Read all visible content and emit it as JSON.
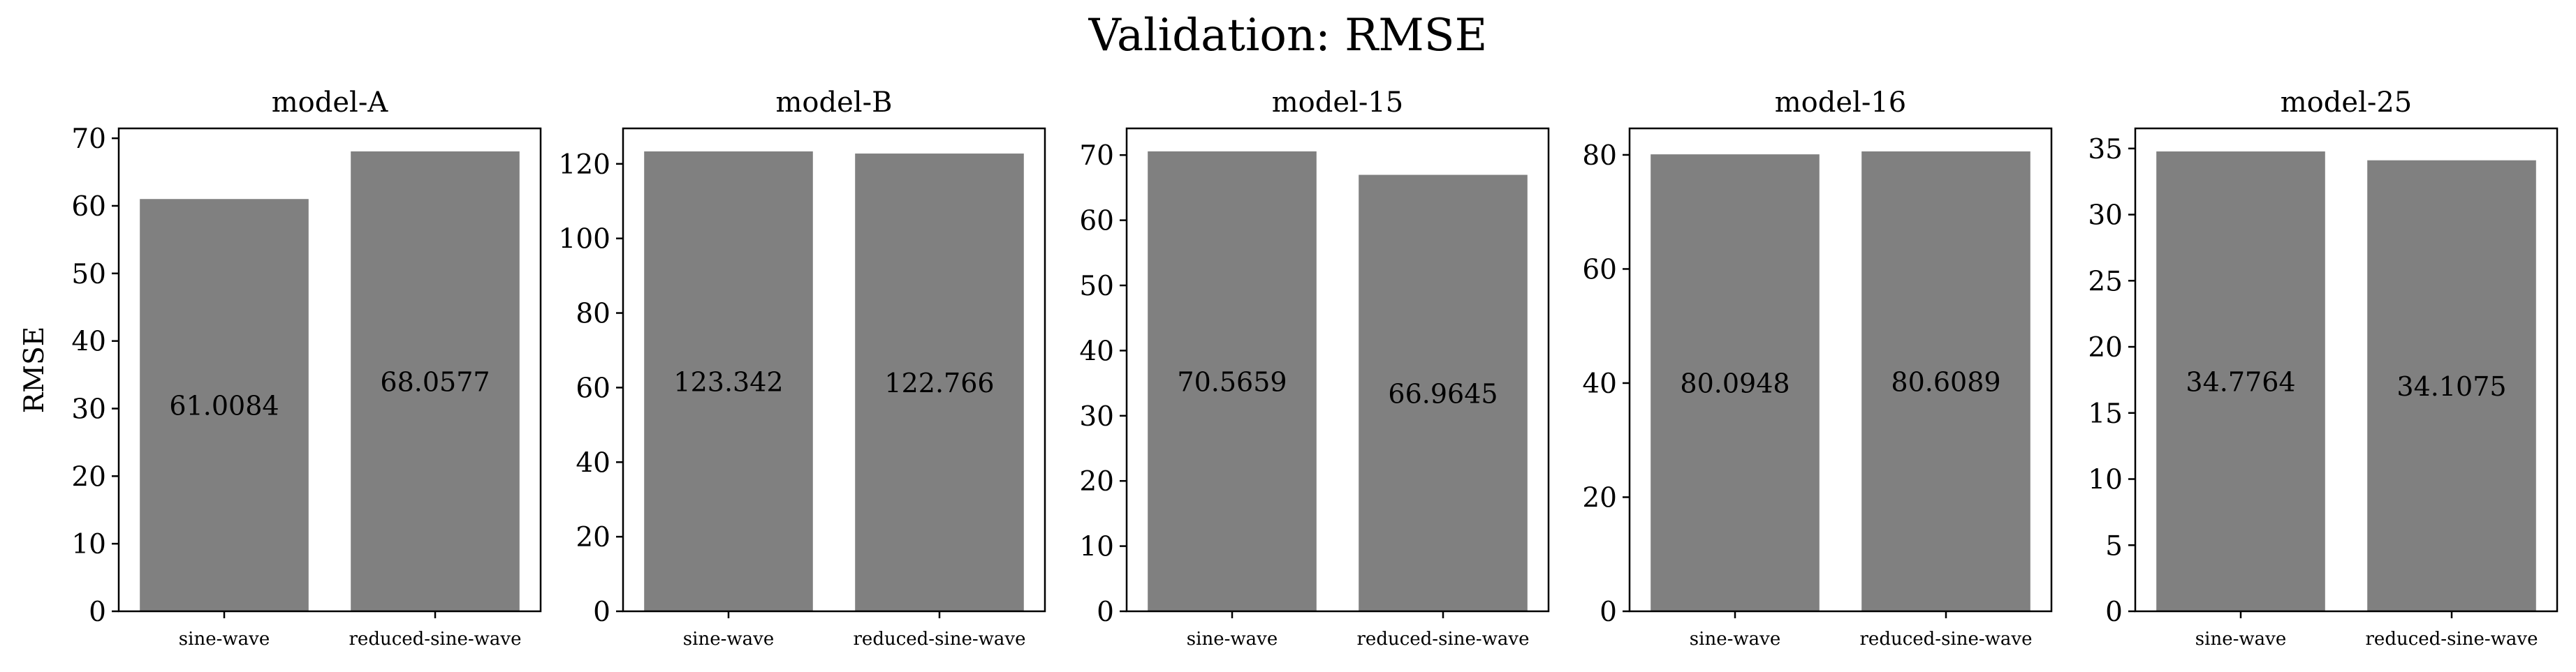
{
  "figure": {
    "suptitle": "Validation: RMSE",
    "bar_color": "#808080"
  },
  "chart_data": [
    {
      "type": "bar",
      "title": "model-A",
      "ylabel": "RMSE",
      "xlabel": "",
      "categories": [
        "sine-wave",
        "reduced-sine-wave"
      ],
      "values": [
        61.0084,
        68.0577
      ],
      "data_labels": [
        "61.0084",
        "68.0577"
      ],
      "ylim": [
        0,
        71.46
      ],
      "yticks": [
        0,
        10,
        20,
        30,
        40,
        50,
        60,
        70
      ]
    },
    {
      "type": "bar",
      "title": "model-B",
      "ylabel": "",
      "xlabel": "",
      "categories": [
        "sine-wave",
        "reduced-sine-wave"
      ],
      "values": [
        123.342,
        122.766
      ],
      "data_labels": [
        "123.342",
        "122.766"
      ],
      "ylim": [
        0,
        129.51
      ],
      "yticks": [
        0,
        20,
        40,
        60,
        80,
        100,
        120
      ]
    },
    {
      "type": "bar",
      "title": "model-15",
      "ylabel": "",
      "xlabel": "",
      "categories": [
        "sine-wave",
        "reduced-sine-wave"
      ],
      "values": [
        70.5659,
        66.9645
      ],
      "data_labels": [
        "70.5659",
        "66.9645"
      ],
      "ylim": [
        0,
        74.09
      ],
      "yticks": [
        0,
        10,
        20,
        30,
        40,
        50,
        60,
        70
      ]
    },
    {
      "type": "bar",
      "title": "model-16",
      "ylabel": "",
      "xlabel": "",
      "categories": [
        "sine-wave",
        "reduced-sine-wave"
      ],
      "values": [
        80.0948,
        80.6089
      ],
      "data_labels": [
        "80.0948",
        "80.6089"
      ],
      "ylim": [
        0,
        84.64
      ],
      "yticks": [
        0,
        20,
        40,
        60,
        80
      ]
    },
    {
      "type": "bar",
      "title": "model-25",
      "ylabel": "",
      "xlabel": "",
      "categories": [
        "sine-wave",
        "reduced-sine-wave"
      ],
      "values": [
        34.7764,
        34.1075
      ],
      "data_labels": [
        "34.7764",
        "34.1075"
      ],
      "ylim": [
        0,
        36.52
      ],
      "yticks": [
        0,
        5,
        10,
        15,
        20,
        25,
        30,
        35
      ]
    }
  ]
}
